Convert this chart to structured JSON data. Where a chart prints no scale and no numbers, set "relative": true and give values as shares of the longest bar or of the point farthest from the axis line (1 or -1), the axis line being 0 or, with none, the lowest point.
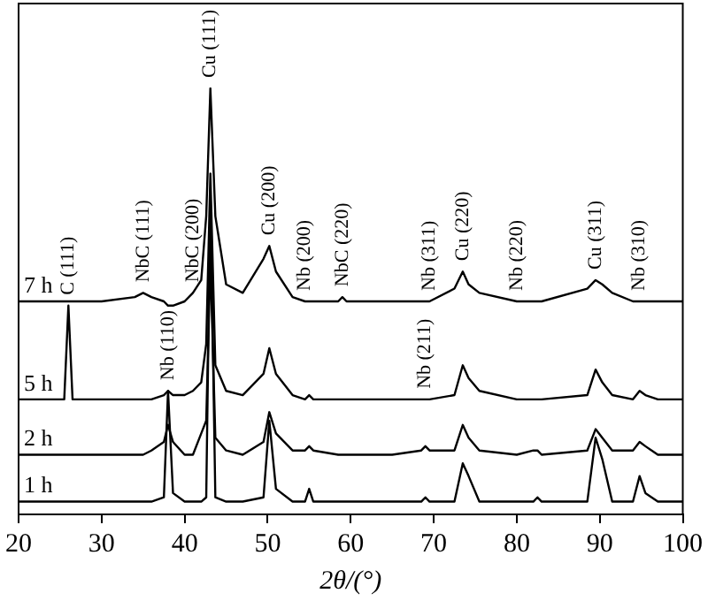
{
  "chart_data": {
    "type": "line",
    "relative": true,
    "xlabel": "2θ/(°)",
    "xlim": [
      20,
      100
    ],
    "xticks": [
      20,
      30,
      40,
      50,
      60,
      70,
      80,
      90,
      100
    ],
    "legend": false,
    "marker": "none",
    "x": [
      20,
      25.5,
      26,
      26.5,
      30,
      34,
      35,
      36,
      37.5,
      38,
      38.6,
      40,
      41,
      42,
      42.6,
      43.1,
      43.7,
      45,
      47,
      49.5,
      50.2,
      51,
      53,
      54.5,
      55,
      55.5,
      58.5,
      59,
      59.5,
      65,
      68.5,
      69,
      69.5,
      72.5,
      73.5,
      74.2,
      75.5,
      80,
      82,
      82.5,
      83,
      88.5,
      89.5,
      90.3,
      91.5,
      94,
      94.8,
      95.5,
      97,
      100
    ],
    "series": [
      {
        "name": "1 h",
        "color": "#000000",
        "values": [
          0.03,
          0.03,
          0.03,
          0.03,
          0.03,
          0.03,
          0.03,
          0.03,
          0.04,
          0.29,
          0.05,
          0.03,
          0.03,
          0.03,
          0.04,
          0.75,
          0.04,
          0.03,
          0.03,
          0.04,
          0.22,
          0.06,
          0.03,
          0.03,
          0.06,
          0.03,
          0.03,
          0.03,
          0.03,
          0.03,
          0.03,
          0.04,
          0.03,
          0.03,
          0.12,
          0.09,
          0.03,
          0.03,
          0.03,
          0.04,
          0.03,
          0.03,
          0.18,
          0.13,
          0.03,
          0.03,
          0.09,
          0.05,
          0.03,
          0.03
        ]
      },
      {
        "name": "2 h",
        "color": "#000000",
        "values": [
          0.14,
          0.14,
          0.14,
          0.14,
          0.14,
          0.14,
          0.14,
          0.15,
          0.17,
          0.21,
          0.17,
          0.14,
          0.14,
          0.19,
          0.22,
          0.6,
          0.18,
          0.15,
          0.14,
          0.17,
          0.24,
          0.19,
          0.15,
          0.15,
          0.16,
          0.15,
          0.14,
          0.14,
          0.14,
          0.14,
          0.15,
          0.16,
          0.15,
          0.15,
          0.21,
          0.18,
          0.15,
          0.14,
          0.15,
          0.15,
          0.14,
          0.15,
          0.2,
          0.18,
          0.15,
          0.15,
          0.17,
          0.16,
          0.14,
          0.14
        ]
      },
      {
        "name": "5 h",
        "color": "#000000",
        "values": [
          0.27,
          0.27,
          0.49,
          0.27,
          0.27,
          0.27,
          0.27,
          0.27,
          0.28,
          0.29,
          0.28,
          0.28,
          0.29,
          0.31,
          0.4,
          0.8,
          0.35,
          0.29,
          0.28,
          0.33,
          0.39,
          0.33,
          0.28,
          0.27,
          0.28,
          0.27,
          0.27,
          0.27,
          0.27,
          0.27,
          0.27,
          0.27,
          0.27,
          0.28,
          0.35,
          0.32,
          0.29,
          0.27,
          0.27,
          0.27,
          0.27,
          0.28,
          0.34,
          0.31,
          0.28,
          0.27,
          0.29,
          0.28,
          0.27,
          0.27
        ]
      },
      {
        "name": "7 h",
        "color": "#000000",
        "values": [
          0.5,
          0.5,
          0.5,
          0.5,
          0.5,
          0.51,
          0.52,
          0.51,
          0.5,
          0.49,
          0.49,
          0.5,
          0.52,
          0.55,
          0.7,
          1.0,
          0.7,
          0.54,
          0.52,
          0.6,
          0.63,
          0.57,
          0.51,
          0.5,
          0.5,
          0.5,
          0.5,
          0.51,
          0.5,
          0.5,
          0.5,
          0.5,
          0.5,
          0.53,
          0.57,
          0.54,
          0.52,
          0.5,
          0.5,
          0.5,
          0.5,
          0.53,
          0.55,
          0.54,
          0.52,
          0.5,
          0.5,
          0.5,
          0.5,
          0.5
        ]
      }
    ],
    "annotations": [
      {
        "text": "C (111)",
        "x": 26,
        "y": 0.49
      },
      {
        "text": "NbC (111)",
        "x": 35,
        "y": 0.52
      },
      {
        "text": "NbC (200)",
        "x": 41,
        "y": 0.52
      },
      {
        "text": "Cu (111)",
        "x": 43.1,
        "y": 1.0
      },
      {
        "text": "Cu (200)",
        "x": 50.2,
        "y": 0.63
      },
      {
        "text": "Nb (200)",
        "x": 54.5,
        "y": 0.5
      },
      {
        "text": "NbC (220)",
        "x": 59,
        "y": 0.51
      },
      {
        "text": "Nb (110)",
        "x": 38,
        "y": 0.29
      },
      {
        "text": "Nb (211)",
        "x": 69,
        "y": 0.27
      },
      {
        "text": "Nb (311)",
        "x": 69.5,
        "y": 0.5
      },
      {
        "text": "Cu (220)",
        "x": 73.5,
        "y": 0.57
      },
      {
        "text": "Nb (220)",
        "x": 80,
        "y": 0.5
      },
      {
        "text": "Cu (311)",
        "x": 89.5,
        "y": 0.55
      },
      {
        "text": "Nb (310)",
        "x": 94.8,
        "y": 0.5
      }
    ]
  }
}
